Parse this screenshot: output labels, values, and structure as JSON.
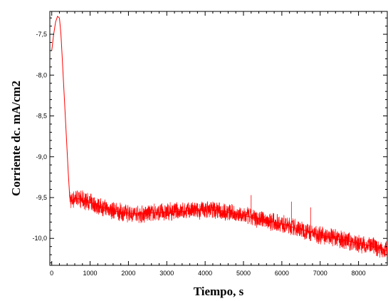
{
  "chart_data": {
    "type": "line",
    "xlabel": "Tiempo, s",
    "ylabel": "Corriente dc. mA/cm2",
    "xlim": [
      -50,
      8750
    ],
    "ylim": [
      -10.33,
      -7.22
    ],
    "xticks": [
      0,
      1000,
      2000,
      3000,
      4000,
      5000,
      6000,
      7000,
      8000
    ],
    "xtick_labels": [
      "0",
      "1000",
      "2000",
      "3000",
      "4000",
      "5000",
      "6000",
      "7000",
      "8000"
    ],
    "yticks": [
      -7.5,
      -8.0,
      -8.5,
      -9.0,
      -9.5,
      -10.0
    ],
    "ytick_labels": [
      "-7,5",
      "-8,0",
      "-8,5",
      "-9,0",
      "-9,5",
      "-10,0"
    ],
    "grid": false,
    "legend": "none",
    "series": [
      {
        "color": "#ff0000",
        "x": [
          0,
          50,
          100,
          150,
          200,
          240,
          280,
          330,
          380,
          430,
          470,
          520,
          600,
          800,
          1000,
          1200,
          1400,
          1600,
          1800,
          2000,
          2200,
          2400,
          2600,
          2800,
          3000,
          3200,
          3400,
          3600,
          3800,
          4000,
          4200,
          4400,
          4600,
          4800,
          5000,
          5200,
          5400,
          5600,
          5800,
          6000,
          6200,
          6400,
          6600,
          6800,
          7000,
          7200,
          7400,
          7600,
          7800,
          8000,
          8200,
          8400,
          8600,
          8750
        ],
        "y": [
          -7.7,
          -7.5,
          -7.35,
          -7.28,
          -7.3,
          -7.5,
          -7.85,
          -8.3,
          -8.75,
          -9.2,
          -9.5,
          -9.55,
          -9.5,
          -9.53,
          -9.56,
          -9.6,
          -9.63,
          -9.66,
          -9.68,
          -9.69,
          -9.7,
          -9.7,
          -9.69,
          -9.68,
          -9.68,
          -9.67,
          -9.67,
          -9.66,
          -9.66,
          -9.65,
          -9.65,
          -9.66,
          -9.68,
          -9.7,
          -9.72,
          -9.74,
          -9.76,
          -9.78,
          -9.8,
          -9.82,
          -9.85,
          -9.88,
          -9.9,
          -9.93,
          -9.96,
          -9.98,
          -10.0,
          -10.02,
          -10.04,
          -10.06,
          -10.08,
          -10.1,
          -10.13,
          -10.15
        ]
      }
    ]
  }
}
